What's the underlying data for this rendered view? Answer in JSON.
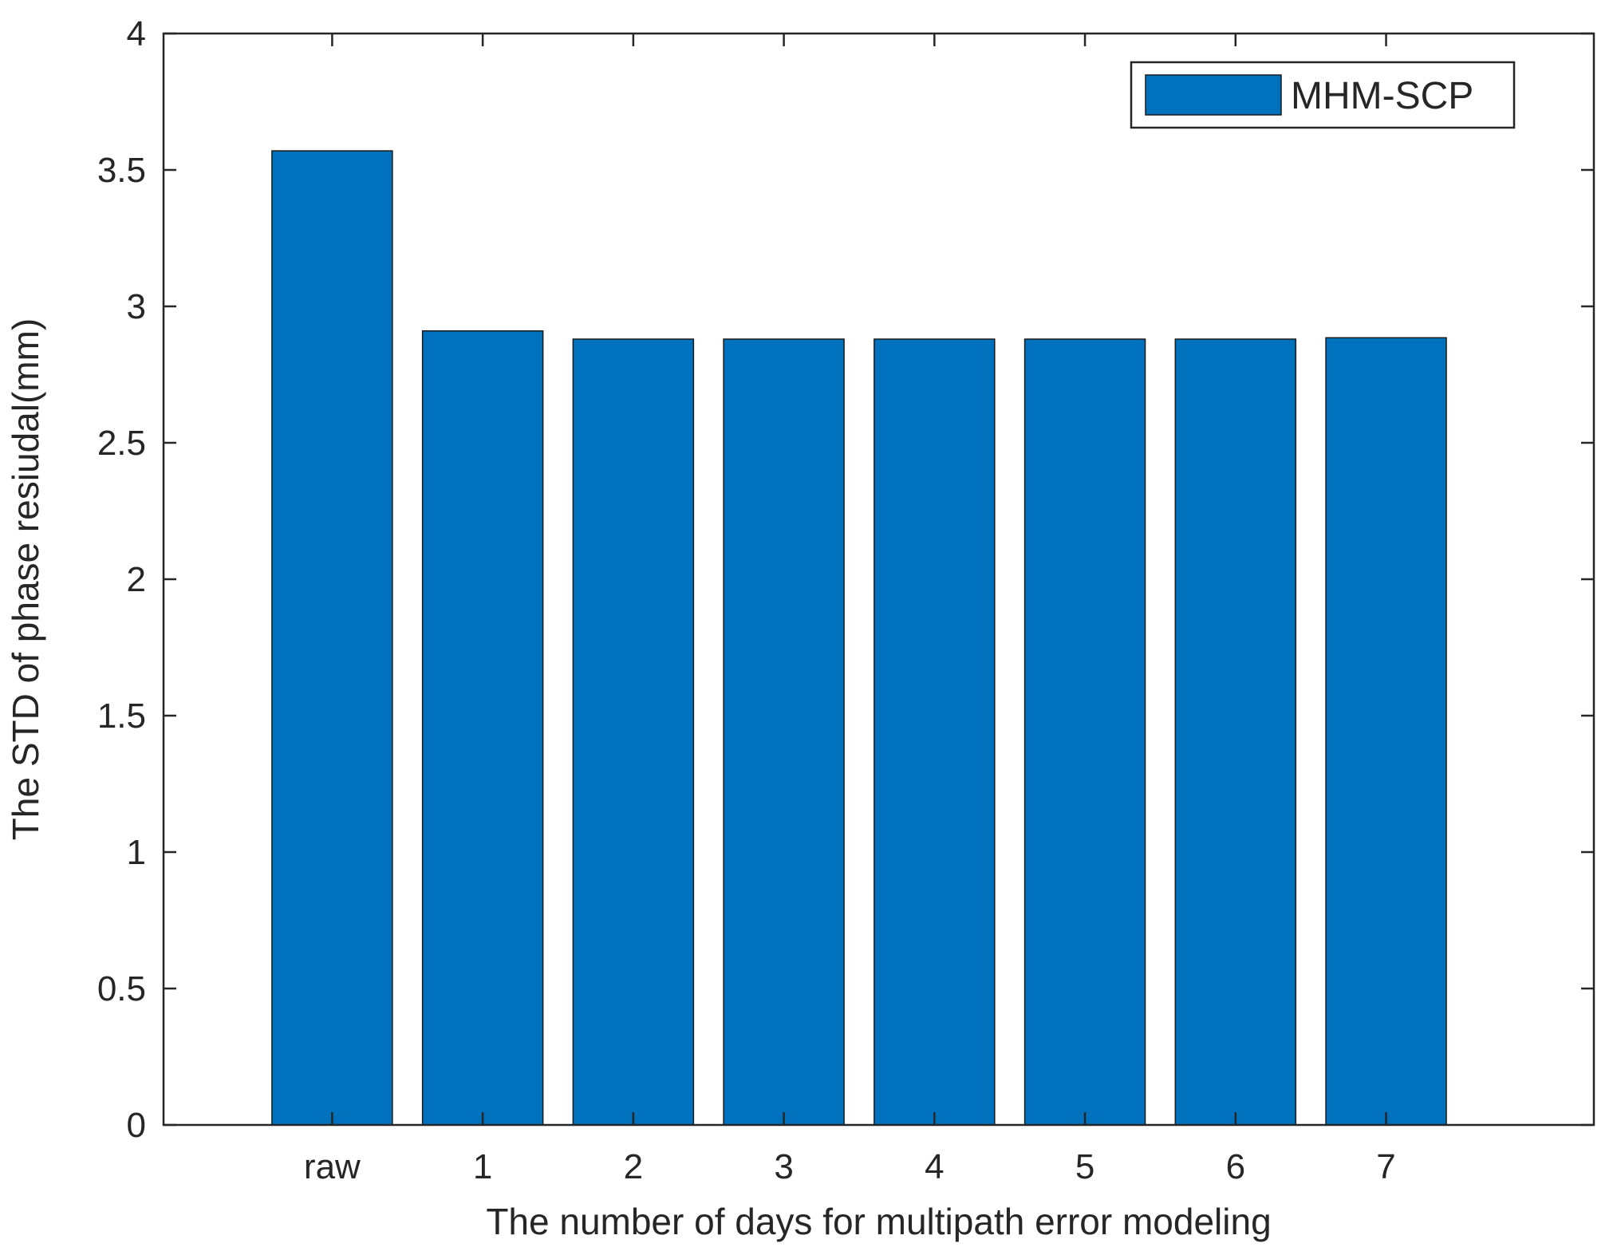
{
  "chart_data": {
    "type": "bar",
    "title": "",
    "xlabel": "The number of days for multipath error modeling",
    "ylabel": "The STD of phase resiudal(mm)",
    "categories": [
      "raw",
      "1",
      "2",
      "3",
      "4",
      "5",
      "6",
      "7"
    ],
    "series": [
      {
        "name": "MHM-SCP",
        "values": [
          3.57,
          2.91,
          2.88,
          2.88,
          2.88,
          2.88,
          2.88,
          2.885
        ]
      }
    ],
    "ylim": [
      0,
      4
    ],
    "yticks": [
      0,
      0.5,
      1,
      1.5,
      2,
      2.5,
      3,
      3.5,
      4
    ],
    "ytick_labels": [
      "0",
      "0.5",
      "1",
      "1.5",
      "2",
      "2.5",
      "3",
      "3.5",
      "4"
    ],
    "grid": false,
    "legend_position": "top-right",
    "colors": {
      "bar": "#0072BD",
      "bar_edge": "#1a1a1a",
      "axes": "#262626",
      "background": "#ffffff"
    }
  }
}
